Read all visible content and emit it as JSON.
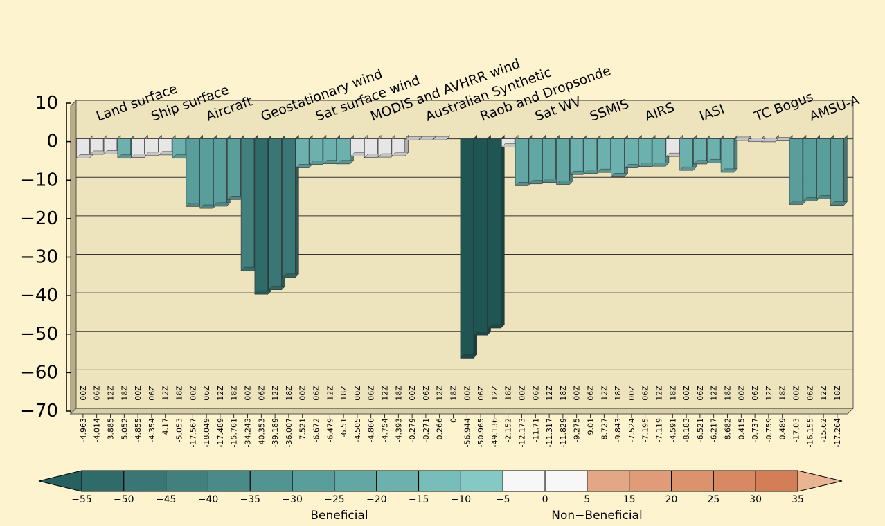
{
  "chart_data": {
    "type": "bar",
    "ylim": [
      -70,
      10
    ],
    "yticks": [
      "10",
      "0",
      "−10",
      "−20",
      "−30",
      "−40",
      "−50",
      "−60",
      "−70"
    ],
    "grid": true,
    "groups": [
      {
        "name": "Land surface",
        "times": [
          "00Z",
          "06Z",
          "12Z",
          "18Z"
        ],
        "values": [
          -4.963,
          -4.014,
          -3.885,
          -5.052
        ],
        "labels": [
          "-4.963",
          "-4.014",
          "-3.885",
          "-5.052"
        ]
      },
      {
        "name": "Ship surface",
        "times": [
          "00Z",
          "06Z",
          "12Z",
          "18Z"
        ],
        "values": [
          -4.855,
          -4.354,
          -4.17,
          -5.053
        ],
        "labels": [
          "-4.855",
          "-4.354",
          "-4.17",
          "-5.053"
        ]
      },
      {
        "name": "Aircraft",
        "times": [
          "00Z",
          "06Z",
          "12Z",
          "18Z"
        ],
        "values": [
          -17.567,
          -18.049,
          -17.489,
          -15.761
        ],
        "labels": [
          "-17.567",
          "-18.049",
          "-17.489",
          "-15.761"
        ]
      },
      {
        "name": "Geostationary wind",
        "times": [
          "00Z",
          "06Z",
          "12Z",
          "18Z"
        ],
        "values": [
          -34.243,
          -40.353,
          -39.189,
          -36.007
        ],
        "labels": [
          "-34.243",
          "-40.353",
          "-39.189",
          "-36.007"
        ]
      },
      {
        "name": "Sat surface wind",
        "times": [
          "00Z",
          "06Z",
          "12Z",
          "18Z"
        ],
        "values": [
          -7.521,
          -6.672,
          -6.479,
          -6.51
        ],
        "labels": [
          "-7.521",
          "-6.672",
          "-6.479",
          "-6.51"
        ]
      },
      {
        "name": "MODIS and AVHRR wind",
        "times": [
          "00Z",
          "06Z",
          "12Z",
          "18Z"
        ],
        "values": [
          -4.505,
          -4.866,
          -4.754,
          -4.393
        ],
        "labels": [
          "-4.505",
          "-4.866",
          "-4.754",
          "-4.393"
        ]
      },
      {
        "name": "Australian Synthetic",
        "times": [
          "00Z",
          "06Z",
          "12Z",
          "18Z"
        ],
        "values": [
          -0.279,
          -0.271,
          -0.266,
          0
        ],
        "labels": [
          "-0.279",
          "-0.271",
          "-0.266",
          "0"
        ]
      },
      {
        "name": "Raob and Dropsonde",
        "times": [
          "00Z",
          "06Z",
          "12Z",
          "18Z"
        ],
        "values": [
          -56.944,
          -50.965,
          -49.136,
          -2.152
        ],
        "labels": [
          "-56.944",
          "-50.965",
          "-49.136",
          "-2.152"
        ]
      },
      {
        "name": "Sat WV",
        "times": [
          "00Z",
          "06Z",
          "12Z",
          "18Z"
        ],
        "values": [
          -12.173,
          -11.71,
          -11.317,
          -11.829
        ],
        "labels": [
          "-12.173",
          "-11.71",
          "-11.317",
          "-11.829"
        ]
      },
      {
        "name": "SSMIS",
        "times": [
          "00Z",
          "06Z",
          "12Z",
          "18Z"
        ],
        "values": [
          -9.275,
          -9.01,
          -8.727,
          -9.843
        ],
        "labels": [
          "-9.275",
          "-9.01",
          "-8.727",
          "-9.843"
        ]
      },
      {
        "name": "AIRS",
        "times": [
          "00Z",
          "06Z",
          "12Z",
          "18Z"
        ],
        "values": [
          -7.524,
          -7.195,
          -7.119,
          -4.591
        ],
        "labels": [
          "-7.524",
          "-7.195",
          "-7.119",
          "-4.591"
        ]
      },
      {
        "name": "IASI",
        "times": [
          "00Z",
          "06Z",
          "12Z",
          "18Z"
        ],
        "values": [
          -8.183,
          -6.521,
          -6.217,
          -8.682
        ],
        "labels": [
          "-8.183",
          "-6.521",
          "-6.217",
          "-8.682"
        ]
      },
      {
        "name": "TC Bogus",
        "times": [
          "00Z",
          "06Z",
          "12Z",
          "18Z"
        ],
        "values": [
          -0.415,
          -0.737,
          -0.759,
          -0.489
        ],
        "labels": [
          "-0.415",
          "-0.737",
          "-0.759",
          "-0.489"
        ]
      },
      {
        "name": "AMSU-A",
        "times": [
          "00Z",
          "06Z",
          "12Z",
          "18Z"
        ],
        "values": [
          -17.03,
          -16.155,
          -15.62,
          -17.264
        ],
        "labels": [
          "-17.03",
          "-16.155",
          "-15.62",
          "-17.264"
        ]
      }
    ],
    "colorbar": {
      "ticks": [
        "−55",
        "−50",
        "−45",
        "−40",
        "−35",
        "−30",
        "−25",
        "−20",
        "−15",
        "−10",
        "−5",
        "0",
        "5",
        "15",
        "20",
        "25",
        "30",
        "35"
      ],
      "colors": [
        "#2e6b69",
        "#3a7675",
        "#42807e",
        "#4a8a88",
        "#529492",
        "#5a9e9b",
        "#62a7a4",
        "#6cb1ae",
        "#78bdb9",
        "#86c9c4",
        "#f7f7f7",
        "#f7f7f7",
        "#e3a786",
        "#e09c78",
        "#dc926c",
        "#d88862",
        "#d47e58"
      ],
      "left_arrow_color": "#27615f",
      "right_arrow_color": "#e8b491",
      "label_left": "Beneficial",
      "label_right": "Non−Beneficial"
    }
  }
}
